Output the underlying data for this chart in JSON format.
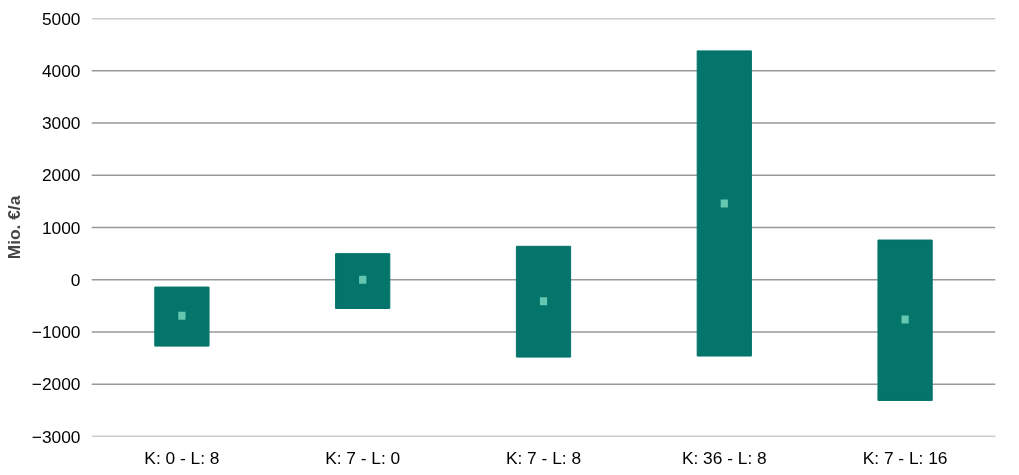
{
  "chart_data": {
    "type": "bar",
    "ylabel": "Mio. €/a",
    "categories": [
      "K: 0 - L: 8",
      "K: 7 - L: 0",
      "K: 7 - L: 8",
      "K: 36 - L: 8",
      "K: 7 - L: 16"
    ],
    "series": [
      {
        "color": "#03756b",
        "base": [
          -1270,
          -550,
          -1480,
          -1460,
          -2310
        ],
        "values": [
          1130,
          1050,
          2120,
          5840,
          3070
        ]
      },
      {
        "type": "scatter",
        "color": "#66c7b0",
        "marker": "square",
        "x": [
          "K: 0 - L: 8",
          "K: 7 - L: 0",
          "K: 7 - L: 8",
          "K: 36 - L: 8",
          "K: 7 - L: 16"
        ],
        "values": [
          -690,
          0,
          -410,
          1460,
          -760
        ]
      }
    ],
    "ylim": [
      -3000,
      5000
    ],
    "yticks": [
      -3000,
      -2000,
      -1000,
      0,
      1000,
      2000,
      3000,
      4000,
      5000
    ],
    "grid": "y"
  }
}
